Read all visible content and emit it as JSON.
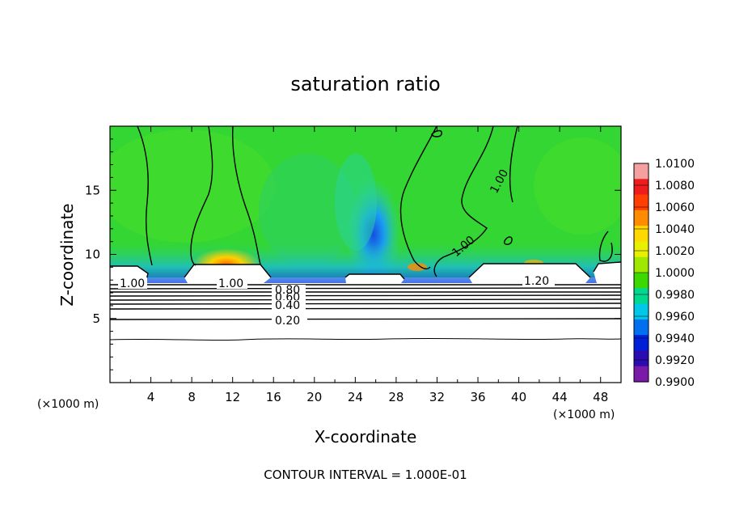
{
  "chart_data": {
    "type": "heatmap",
    "title": "saturation ratio",
    "xlabel": "X-coordinate",
    "ylabel": "Z-coordinate",
    "x_unit": "(×1000 m)",
    "y_unit": "(×1000 m)",
    "xlim": [
      0,
      50
    ],
    "ylim": [
      0,
      20
    ],
    "x_ticks": [
      "4",
      "8",
      "12",
      "16",
      "20",
      "24",
      "28",
      "32",
      "36",
      "40",
      "44",
      "48"
    ],
    "y_ticks": [
      "5",
      "10",
      "15"
    ],
    "colorbar": {
      "min": 0.99,
      "max": 1.01,
      "labels": [
        "1.0100",
        "1.0080",
        "1.0060",
        "1.0040",
        "1.0020",
        "1.0000",
        "0.9980",
        "0.9960",
        "0.9940",
        "0.9920",
        "0.9900"
      ],
      "colors": [
        "#f4a0a0",
        "#ee1c1c",
        "#ff4000",
        "#ff8c00",
        "#ffd800",
        "#e8f000",
        "#a0e800",
        "#3cd800",
        "#00d890",
        "#00c8e8",
        "#0070f0",
        "#0020d8",
        "#2a0cb0",
        "#7a1aa8"
      ]
    },
    "contour_labels": [
      "1.00",
      "1.00",
      "1.00",
      "1.00",
      "1.20",
      "0.80",
      "0.60",
      "0.40",
      "0.20"
    ],
    "footer": "CONTOUR INTERVAL = 1.000E-01"
  }
}
